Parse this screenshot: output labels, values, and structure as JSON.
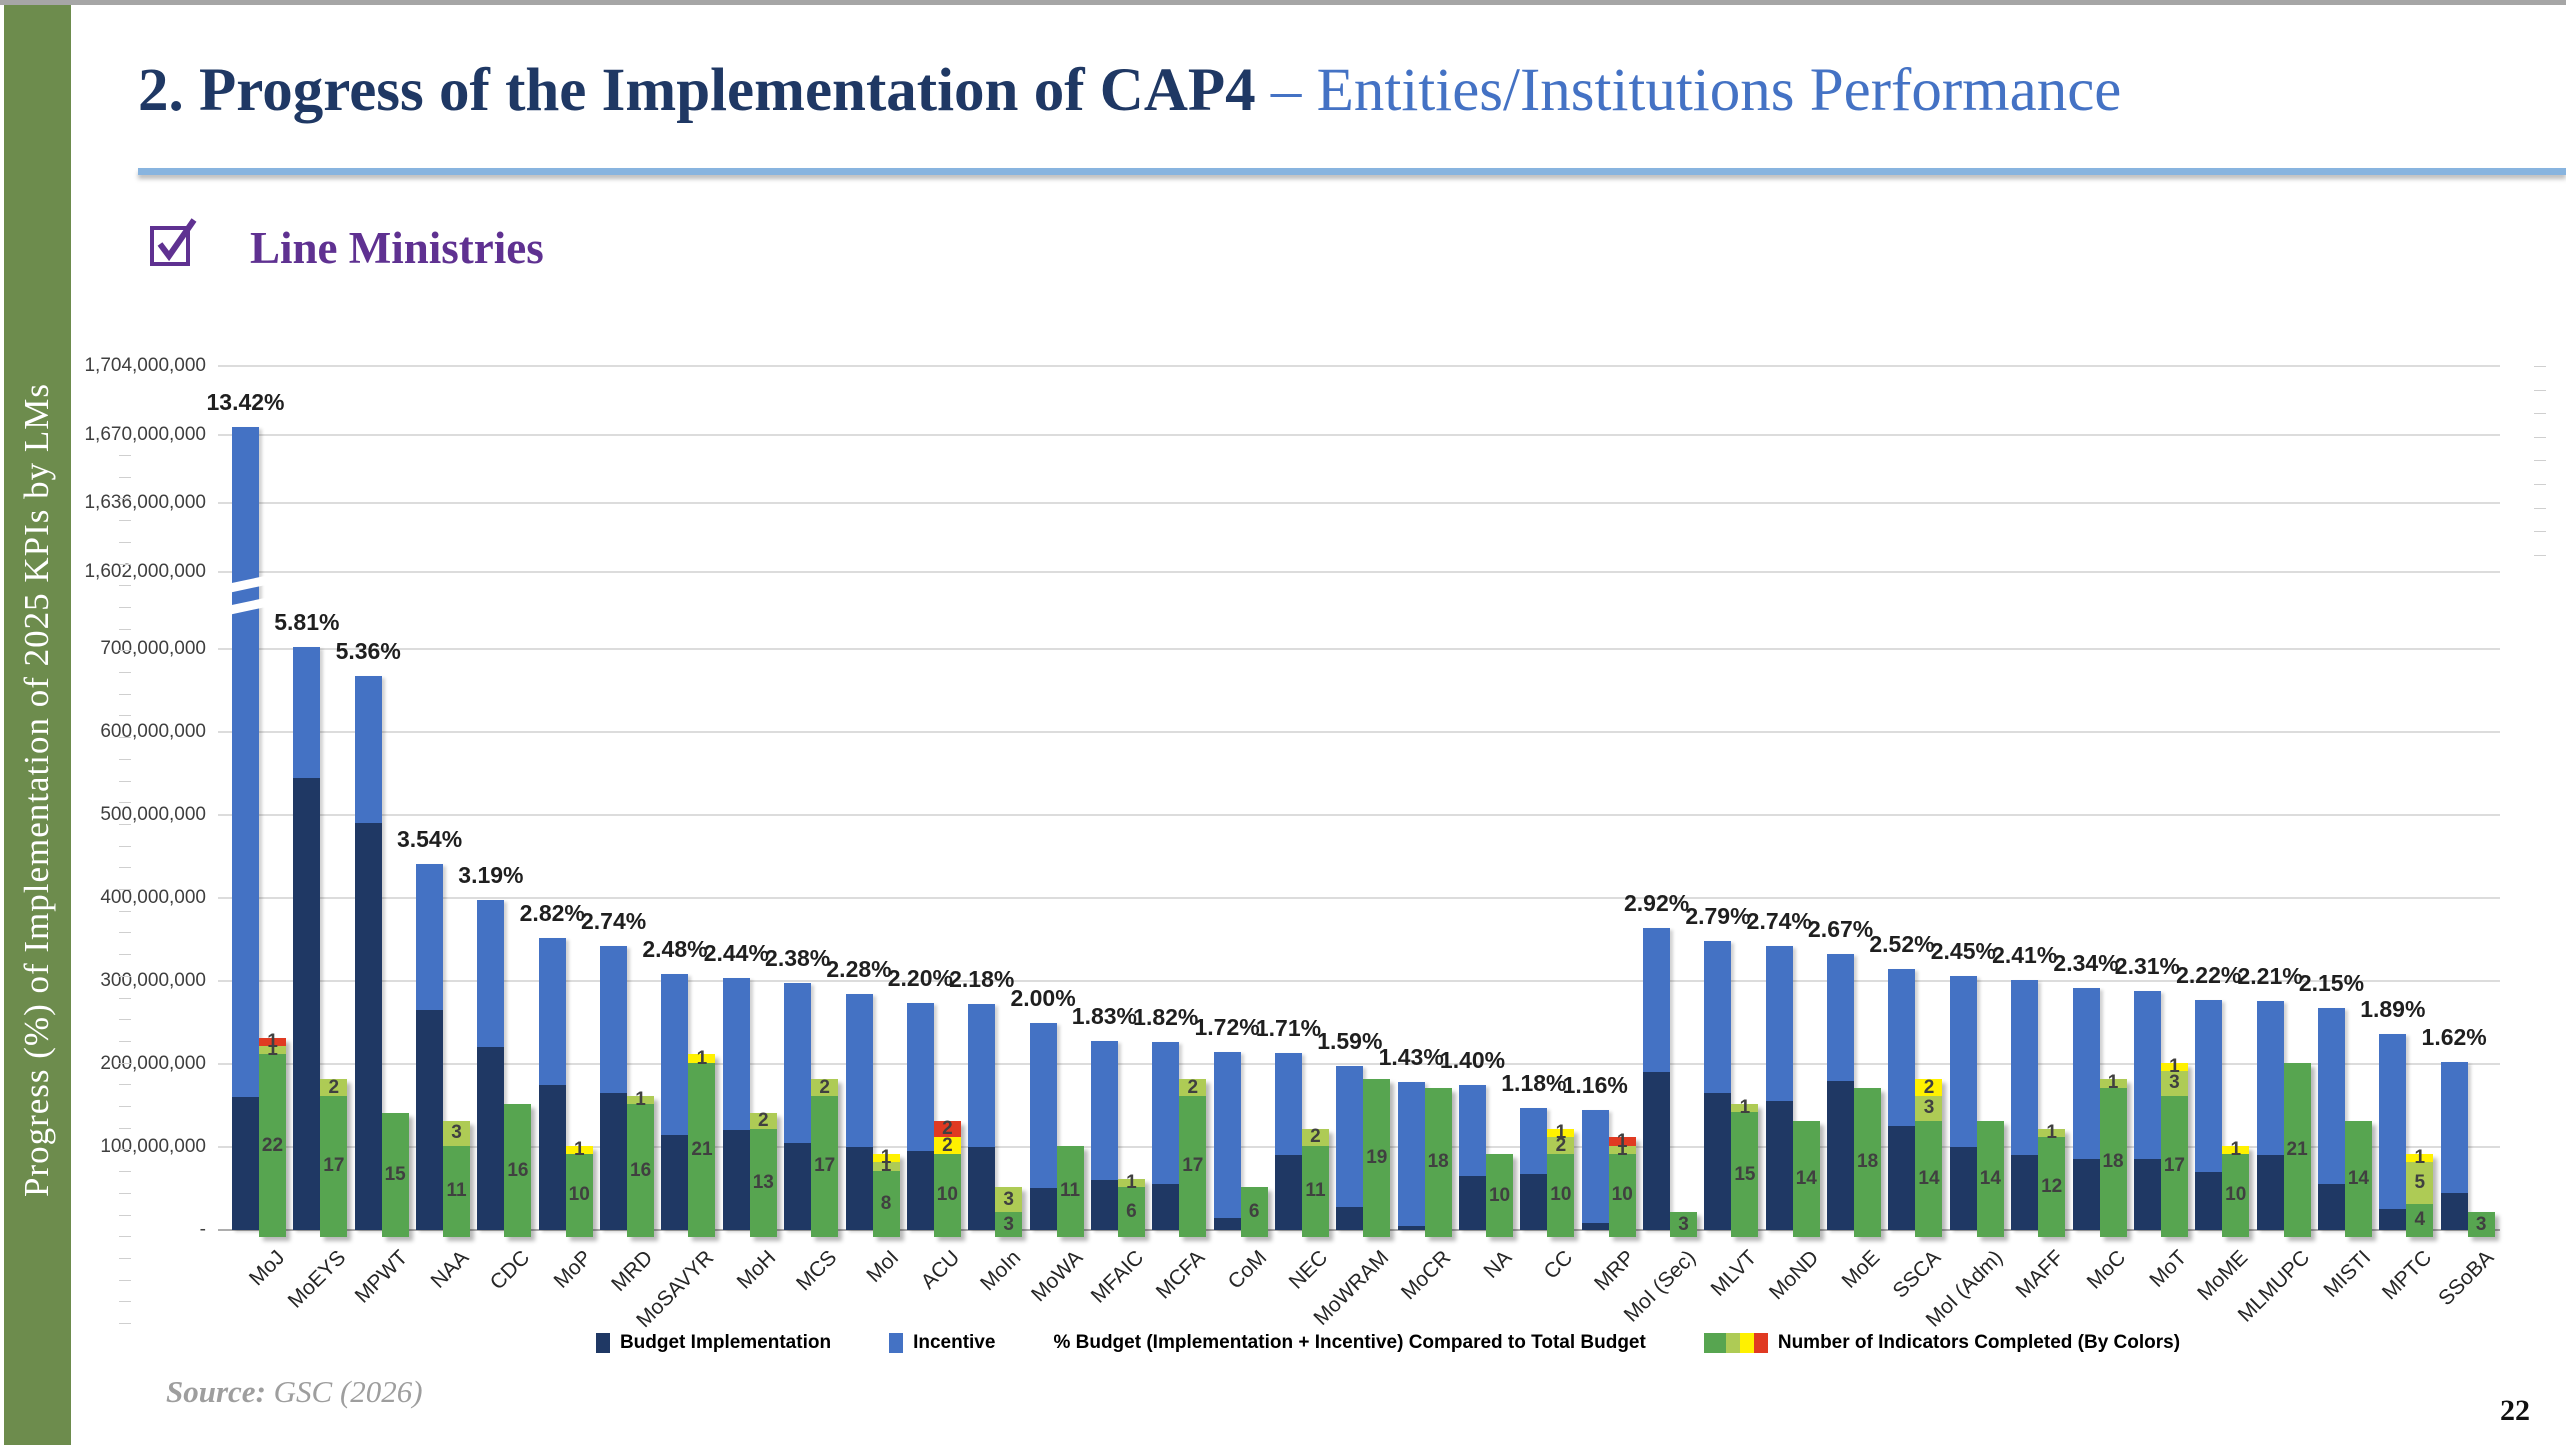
{
  "slide": {
    "title_part1": "2. Progress of the Implementation of CAP4 ",
    "title_part2": "– Entities/Institutions Performance",
    "section_checkbox_label": "Line Ministries",
    "sidebar_vertical_text": "Progress (%)  of Implementation of 2025 KPIs by LMs",
    "source_prefix": "Source:",
    "source_text": " GSC (2026)",
    "page_number": "22"
  },
  "colors": {
    "budget_implementation": "#1F3864",
    "incentive": "#4472C4",
    "indicator_green": "#57A550",
    "indicator_light_green": "#AECB55",
    "indicator_yellow": "#FFF100",
    "indicator_red": "#E03A22",
    "sidebar_green": "#6D8C4D",
    "title_navy": "#1F3864",
    "title_blue": "#4472C4",
    "accent_purple": "#5F3191",
    "underline_blue": "#88B4DF",
    "gridline": "#DCDCDC"
  },
  "legend": {
    "items": [
      {
        "swatch": "navy",
        "label": "Budget Implementation"
      },
      {
        "swatch": "blue",
        "label": "Incentive"
      },
      {
        "swatch": "none",
        "label": "% Budget (Implementation + Incentive) Compared to Total Budget"
      },
      {
        "swatch": "indicator-strip",
        "label": "Number of Indicators Completed (By Colors)"
      }
    ]
  },
  "chart_data": {
    "type": "bar",
    "title": "",
    "xlabel": "",
    "ylabel": "",
    "legend_position": "bottom",
    "grid": true,
    "value_axis_ticks": [
      "1,704,000,000",
      "1,670,000,000",
      "1,636,000,000",
      "1,602,000,000",
      "700,000,000",
      "600,000,000",
      "500,000,000",
      "400,000,000",
      "300,000,000",
      "200,000,000",
      "100,000,000",
      "-"
    ],
    "axis_break": {
      "lower_max": 700000000,
      "upper_min": 1602000000,
      "broken_bar": "MoJ"
    },
    "series_names": [
      "Budget Implementation",
      "Incentive",
      "Number of Indicators Completed (By Colors)"
    ],
    "ministries": [
      {
        "name": "MoJ",
        "pct": "13.42%",
        "budget_implementation": 160000000,
        "incentive": 1514000000,
        "indicators": {
          "green": 22,
          "light_green": 1,
          "yellow": 0,
          "red": 1
        },
        "axis_break": true
      },
      {
        "name": "MoEYS",
        "pct": "5.81%",
        "budget_implementation": 545000000,
        "incentive": 179000000,
        "indicators": {
          "green": 17,
          "light_green": 2,
          "yellow": 0,
          "red": 0
        }
      },
      {
        "name": "MPWT",
        "pct": "5.36%",
        "budget_implementation": 490000000,
        "incentive": 178000000,
        "indicators": {
          "green": 15,
          "light_green": 0,
          "yellow": 0,
          "red": 0
        }
      },
      {
        "name": "NAA",
        "pct": "3.54%",
        "budget_implementation": 265000000,
        "incentive": 176000000,
        "indicators": {
          "green": 11,
          "light_green": 3,
          "yellow": 0,
          "red": 0
        }
      },
      {
        "name": "CDC",
        "pct": "3.19%",
        "budget_implementation": 220000000,
        "incentive": 178000000,
        "indicators": {
          "green": 16,
          "light_green": 0,
          "yellow": 0,
          "red": 0
        }
      },
      {
        "name": "MoP",
        "pct": "2.82%",
        "budget_implementation": 175000000,
        "incentive": 177000000,
        "indicators": {
          "green": 10,
          "light_green": 0,
          "yellow": 1,
          "red": 0
        }
      },
      {
        "name": "MRD",
        "pct": "2.74%",
        "budget_implementation": 165000000,
        "incentive": 177000000,
        "indicators": {
          "green": 16,
          "light_green": 1,
          "yellow": 0,
          "red": 0
        }
      },
      {
        "name": "MoSAVYR",
        "pct": "2.48%",
        "budget_implementation": 115000000,
        "incentive": 194000000,
        "indicators": {
          "green": 21,
          "light_green": 0,
          "yellow": 1,
          "red": 0
        }
      },
      {
        "name": "MoH",
        "pct": "2.44%",
        "budget_implementation": 120000000,
        "incentive": 184000000,
        "indicators": {
          "green": 13,
          "light_green": 2,
          "yellow": 0,
          "red": 0
        }
      },
      {
        "name": "MCS",
        "pct": "2.38%",
        "budget_implementation": 105000000,
        "incentive": 192000000,
        "indicators": {
          "green": 17,
          "light_green": 2,
          "yellow": 0,
          "red": 0
        }
      },
      {
        "name": "MoI",
        "pct": "2.28%",
        "budget_implementation": 100000000,
        "incentive": 184000000,
        "indicators": {
          "green": 8,
          "light_green": 1,
          "yellow": 1,
          "red": 0
        }
      },
      {
        "name": "ACU",
        "pct": "2.20%",
        "budget_implementation": 95000000,
        "incentive": 179000000,
        "indicators": {
          "green": 10,
          "light_green": 0,
          "yellow": 2,
          "red": 2
        }
      },
      {
        "name": "MoIn",
        "pct": "2.18%",
        "budget_implementation": 100000000,
        "incentive": 172000000,
        "indicators": {
          "green": 3,
          "light_green": 3,
          "yellow": 0,
          "red": 0
        }
      },
      {
        "name": "MoWA",
        "pct": "2.00%",
        "budget_implementation": 50000000,
        "incentive": 199000000,
        "indicators": {
          "green": 11,
          "light_green": 0,
          "yellow": 0,
          "red": 0
        }
      },
      {
        "name": "MFAIC",
        "pct": "1.83%",
        "budget_implementation": 60000000,
        "incentive": 168000000,
        "indicators": {
          "green": 6,
          "light_green": 1,
          "yellow": 0,
          "red": 0
        }
      },
      {
        "name": "MCFA",
        "pct": "1.82%",
        "budget_implementation": 55000000,
        "incentive": 172000000,
        "indicators": {
          "green": 17,
          "light_green": 2,
          "yellow": 0,
          "red": 0
        }
      },
      {
        "name": "CoM",
        "pct": "1.72%",
        "budget_implementation": 15000000,
        "incentive": 199000000,
        "indicators": {
          "green": 6,
          "light_green": 0,
          "yellow": 0,
          "red": 0
        }
      },
      {
        "name": "NEC",
        "pct": "1.71%",
        "budget_implementation": 90000000,
        "incentive": 123000000,
        "indicators": {
          "green": 11,
          "light_green": 2,
          "yellow": 0,
          "red": 0
        }
      },
      {
        "name": "MoWRAM",
        "pct": "1.59%",
        "budget_implementation": 28000000,
        "incentive": 170000000,
        "indicators": {
          "green": 19,
          "light_green": 0,
          "yellow": 0,
          "red": 0
        }
      },
      {
        "name": "MoCR",
        "pct": "1.43%",
        "budget_implementation": 5000000,
        "incentive": 173000000,
        "indicators": {
          "green": 18,
          "light_green": 0,
          "yellow": 0,
          "red": 0
        }
      },
      {
        "name": "NA",
        "pct": "1.40%",
        "budget_implementation": 65000000,
        "incentive": 110000000,
        "indicators": {
          "green": 10,
          "light_green": 0,
          "yellow": 0,
          "red": 0
        }
      },
      {
        "name": "CC",
        "pct": "1.18%",
        "budget_implementation": 68000000,
        "incentive": 79000000,
        "indicators": {
          "green": 10,
          "light_green": 2,
          "yellow": 1,
          "red": 0
        }
      },
      {
        "name": "MRP",
        "pct": "1.16%",
        "budget_implementation": 8000000,
        "incentive": 137000000,
        "indicators": {
          "green": 10,
          "light_green": 1,
          "yellow": 0,
          "red": 1
        }
      },
      {
        "name": "MoI (Sec)",
        "pct": "2.92%",
        "budget_implementation": 190000000,
        "incentive": 174000000,
        "indicators": {
          "green": 3,
          "light_green": 0,
          "yellow": 0,
          "red": 0
        }
      },
      {
        "name": "MLVT",
        "pct": "2.79%",
        "budget_implementation": 165000000,
        "incentive": 183000000,
        "indicators": {
          "green": 15,
          "light_green": 1,
          "yellow": 0,
          "red": 0
        }
      },
      {
        "name": "MoND",
        "pct": "2.74%",
        "budget_implementation": 155000000,
        "incentive": 187000000,
        "indicators": {
          "green": 14,
          "light_green": 0,
          "yellow": 0,
          "red": 0
        }
      },
      {
        "name": "MoE",
        "pct": "2.67%",
        "budget_implementation": 180000000,
        "incentive": 153000000,
        "indicators": {
          "green": 18,
          "light_green": 0,
          "yellow": 0,
          "red": 0
        }
      },
      {
        "name": "SSCA",
        "pct": "2.52%",
        "budget_implementation": 125000000,
        "incentive": 189000000,
        "indicators": {
          "green": 14,
          "light_green": 3,
          "yellow": 2,
          "red": 0
        }
      },
      {
        "name": "MoI (Adm)",
        "pct": "2.45%",
        "budget_implementation": 100000000,
        "incentive": 206000000,
        "indicators": {
          "green": 14,
          "light_green": 0,
          "yellow": 0,
          "red": 0
        }
      },
      {
        "name": "MAFF",
        "pct": "2.41%",
        "budget_implementation": 90000000,
        "incentive": 211000000,
        "indicators": {
          "green": 12,
          "light_green": 1,
          "yellow": 0,
          "red": 0
        }
      },
      {
        "name": "MoC",
        "pct": "2.34%",
        "budget_implementation": 85000000,
        "incentive": 207000000,
        "indicators": {
          "green": 18,
          "light_green": 1,
          "yellow": 0,
          "red": 0
        }
      },
      {
        "name": "MoT",
        "pct": "2.31%",
        "budget_implementation": 85000000,
        "incentive": 203000000,
        "indicators": {
          "green": 17,
          "light_green": 3,
          "yellow": 1,
          "red": 0
        }
      },
      {
        "name": "MoME",
        "pct": "2.22%",
        "budget_implementation": 70000000,
        "incentive": 207000000,
        "indicators": {
          "green": 10,
          "light_green": 0,
          "yellow": 1,
          "red": 0
        }
      },
      {
        "name": "MLMUPC",
        "pct": "2.21%",
        "budget_implementation": 90000000,
        "incentive": 186000000,
        "indicators": {
          "green": 21,
          "light_green": 0,
          "yellow": 0,
          "red": 0
        }
      },
      {
        "name": "MISTI",
        "pct": "2.15%",
        "budget_implementation": 55000000,
        "incentive": 213000000,
        "indicators": {
          "green": 14,
          "light_green": 0,
          "yellow": 0,
          "red": 0
        }
      },
      {
        "name": "MPTC",
        "pct": "1.89%",
        "budget_implementation": 25000000,
        "incentive": 211000000,
        "indicators": {
          "green": 4,
          "light_green": 5,
          "yellow": 1,
          "red": 0
        }
      },
      {
        "name": "SSoBA",
        "pct": "1.62%",
        "budget_implementation": 45000000,
        "incentive": 157000000,
        "indicators": {
          "green": 3,
          "light_green": 0,
          "yellow": 0,
          "red": 0
        }
      }
    ]
  }
}
